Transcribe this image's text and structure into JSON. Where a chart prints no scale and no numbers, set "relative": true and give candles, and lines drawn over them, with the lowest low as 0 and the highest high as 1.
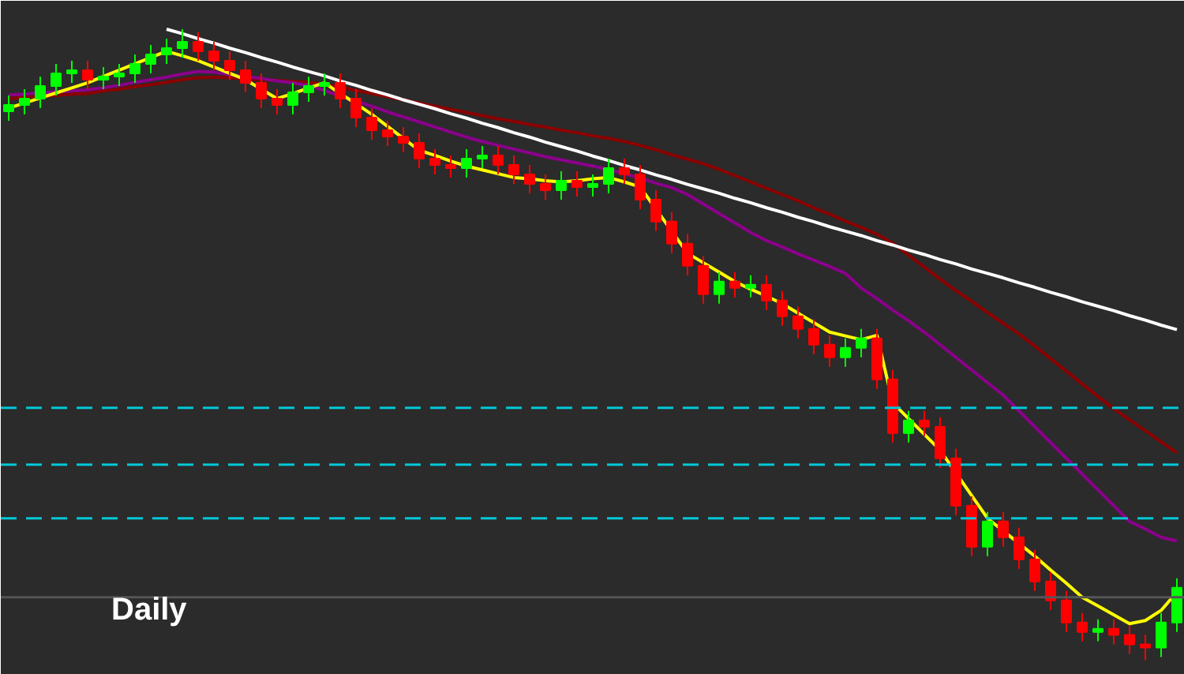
{
  "chart_data": {
    "type": "candlestick",
    "relative": true,
    "categories": [
      null,
      null,
      null,
      null,
      null,
      null,
      null,
      null,
      null,
      null,
      null,
      null,
      null,
      null,
      null,
      null,
      null,
      null,
      null,
      null,
      null,
      null,
      null,
      null,
      null,
      null,
      null,
      null,
      null,
      null,
      null,
      null,
      null,
      null,
      null,
      null,
      null,
      null,
      null,
      null,
      null,
      null,
      null,
      null,
      null,
      null,
      null,
      null,
      null,
      null,
      null,
      null,
      null,
      null,
      null,
      null,
      null,
      null,
      null,
      null,
      null,
      null,
      null,
      null,
      null,
      null,
      null,
      null,
      null,
      null,
      null,
      null,
      null,
      null,
      null
    ],
    "ohlc": [
      [
        0.87,
        0.895,
        0.855,
        0.88
      ],
      [
        0.88,
        0.905,
        0.865,
        0.89
      ],
      [
        0.89,
        0.925,
        0.875,
        0.91
      ],
      [
        0.91,
        0.945,
        0.895,
        0.93
      ],
      [
        0.93,
        0.95,
        0.915,
        0.935
      ],
      [
        0.935,
        0.95,
        0.905,
        0.92
      ],
      [
        0.92,
        0.94,
        0.905,
        0.925
      ],
      [
        0.925,
        0.945,
        0.91,
        0.93
      ],
      [
        0.93,
        0.96,
        0.915,
        0.945
      ],
      [
        0.945,
        0.975,
        0.93,
        0.96
      ],
      [
        0.96,
        0.985,
        0.945,
        0.97
      ],
      [
        0.97,
        1.0,
        0.955,
        0.98
      ],
      [
        0.98,
        0.995,
        0.95,
        0.965
      ],
      [
        0.965,
        0.98,
        0.935,
        0.95
      ],
      [
        0.95,
        0.965,
        0.92,
        0.935
      ],
      [
        0.935,
        0.95,
        0.9,
        0.915
      ],
      [
        0.915,
        0.93,
        0.875,
        0.89
      ],
      [
        0.89,
        0.905,
        0.865,
        0.88
      ],
      [
        0.88,
        0.915,
        0.865,
        0.9
      ],
      [
        0.9,
        0.925,
        0.885,
        0.91
      ],
      [
        0.91,
        0.93,
        0.895,
        0.915
      ],
      [
        0.915,
        0.93,
        0.875,
        0.89
      ],
      [
        0.89,
        0.905,
        0.845,
        0.86
      ],
      [
        0.86,
        0.875,
        0.825,
        0.84
      ],
      [
        0.84,
        0.855,
        0.815,
        0.83
      ],
      [
        0.83,
        0.845,
        0.805,
        0.82
      ],
      [
        0.82,
        0.835,
        0.78,
        0.795
      ],
      [
        0.795,
        0.81,
        0.77,
        0.785
      ],
      [
        0.785,
        0.8,
        0.765,
        0.78
      ],
      [
        0.78,
        0.81,
        0.765,
        0.795
      ],
      [
        0.795,
        0.815,
        0.78,
        0.8
      ],
      [
        0.8,
        0.815,
        0.77,
        0.785
      ],
      [
        0.785,
        0.8,
        0.755,
        0.77
      ],
      [
        0.77,
        0.785,
        0.74,
        0.755
      ],
      [
        0.755,
        0.77,
        0.73,
        0.745
      ],
      [
        0.745,
        0.775,
        0.73,
        0.76
      ],
      [
        0.76,
        0.775,
        0.735,
        0.75
      ],
      [
        0.75,
        0.77,
        0.735,
        0.755
      ],
      [
        0.755,
        0.795,
        0.74,
        0.78
      ],
      [
        0.78,
        0.795,
        0.755,
        0.77
      ],
      [
        0.77,
        0.785,
        0.715,
        0.73
      ],
      [
        0.73,
        0.745,
        0.68,
        0.695
      ],
      [
        0.695,
        0.71,
        0.645,
        0.66
      ],
      [
        0.66,
        0.675,
        0.61,
        0.625
      ],
      [
        0.625,
        0.64,
        0.565,
        0.58
      ],
      [
        0.58,
        0.615,
        0.565,
        0.6
      ],
      [
        0.6,
        0.615,
        0.575,
        0.59
      ],
      [
        0.59,
        0.61,
        0.575,
        0.595
      ],
      [
        0.595,
        0.61,
        0.555,
        0.57
      ],
      [
        0.57,
        0.585,
        0.53,
        0.545
      ],
      [
        0.545,
        0.56,
        0.51,
        0.525
      ],
      [
        0.525,
        0.54,
        0.485,
        0.5
      ],
      [
        0.5,
        0.515,
        0.465,
        0.48
      ],
      [
        0.48,
        0.51,
        0.465,
        0.495
      ],
      [
        0.495,
        0.525,
        0.48,
        0.51
      ],
      [
        0.51,
        0.525,
        0.43,
        0.445
      ],
      [
        0.445,
        0.46,
        0.345,
        0.36
      ],
      [
        0.36,
        0.395,
        0.345,
        0.38
      ],
      [
        0.38,
        0.395,
        0.355,
        0.37
      ],
      [
        0.37,
        0.385,
        0.305,
        0.32
      ],
      [
        0.32,
        0.335,
        0.23,
        0.245
      ],
      [
        0.245,
        0.26,
        0.165,
        0.18
      ],
      [
        0.18,
        0.235,
        0.165,
        0.22
      ],
      [
        0.22,
        0.235,
        0.18,
        0.195
      ],
      [
        0.195,
        0.21,
        0.145,
        0.16
      ],
      [
        0.16,
        0.175,
        0.11,
        0.125
      ],
      [
        0.125,
        0.14,
        0.08,
        0.095
      ],
      [
        0.095,
        0.11,
        0.045,
        0.06
      ],
      [
        0.06,
        0.075,
        0.03,
        0.045
      ],
      [
        0.045,
        0.065,
        0.03,
        0.05
      ],
      [
        0.05,
        0.065,
        0.025,
        0.04
      ],
      [
        0.04,
        0.055,
        0.01,
        0.025
      ],
      [
        0.025,
        0.04,
        0.0,
        0.02
      ],
      [
        0.02,
        0.075,
        0.005,
        0.06
      ],
      [
        0.06,
        0.13,
        0.045,
        0.115
      ]
    ],
    "colors": [
      "#00ff00",
      "#00ff00",
      "#00ff00",
      "#00ff00",
      "#00ff00",
      "#ff0000",
      "#00ff00",
      "#00ff00",
      "#00ff00",
      "#00ff00",
      "#00ff00",
      "#00ff00",
      "#ff0000",
      "#ff0000",
      "#ff0000",
      "#ff0000",
      "#ff0000",
      "#ff0000",
      "#00ff00",
      "#00ff00",
      "#00ff00",
      "#ff0000",
      "#ff0000",
      "#ff0000",
      "#ff0000",
      "#ff0000",
      "#ff0000",
      "#ff0000",
      "#ff0000",
      "#00ff00",
      "#00ff00",
      "#ff0000",
      "#ff0000",
      "#ff0000",
      "#ff0000",
      "#00ff00",
      "#ff0000",
      "#00ff00",
      "#00ff00",
      "#ff0000",
      "#ff0000",
      "#ff0000",
      "#ff0000",
      "#ff0000",
      "#ff0000",
      "#00ff00",
      "#ff0000",
      "#00ff00",
      "#ff0000",
      "#ff0000",
      "#ff0000",
      "#ff0000",
      "#ff0000",
      "#00ff00",
      "#00ff00",
      "#ff0000",
      "#ff0000",
      "#00ff00",
      "#ff0000",
      "#ff0000",
      "#ff0000",
      "#ff0000",
      "#00ff00",
      "#ff0000",
      "#ff0000",
      "#ff0000",
      "#ff0000",
      "#ff0000",
      "#ff0000",
      "#00ff00",
      "#ff0000",
      "#ff0000",
      "#ff0000",
      "#00ff00",
      "#00ff00"
    ],
    "series": [
      {
        "type": "line",
        "color": "#8b0000",
        "values": [
          0.89,
          0.892,
          0.893,
          0.895,
          0.897,
          0.898,
          0.902,
          0.905,
          0.909,
          0.912,
          0.916,
          0.92,
          0.923,
          0.924,
          0.923,
          0.921,
          0.92,
          0.919,
          0.917,
          0.916,
          0.913,
          0.908,
          0.903,
          0.898,
          0.893,
          0.888,
          0.883,
          0.878,
          0.873,
          0.868,
          0.863,
          0.858,
          0.854,
          0.849,
          0.845,
          0.84,
          0.836,
          0.831,
          0.827,
          0.822,
          0.816,
          0.809,
          0.801,
          0.794,
          0.787,
          0.778,
          0.768,
          0.758,
          0.748,
          0.738,
          0.728,
          0.717,
          0.707,
          0.696,
          0.686,
          0.675,
          0.661,
          0.642,
          0.623,
          0.604,
          0.586,
          0.569,
          0.551,
          0.534,
          0.517,
          0.498,
          0.478,
          0.458,
          0.438,
          0.418,
          0.399,
          0.381,
          0.364,
          0.346,
          0.329
        ]
      },
      {
        "type": "line",
        "color": "#8b008b",
        "values": [
          0.896,
          0.897,
          0.899,
          0.901,
          0.902,
          0.904,
          0.907,
          0.911,
          0.916,
          0.92,
          0.924,
          0.929,
          0.933,
          0.932,
          0.928,
          0.925,
          0.922,
          0.918,
          0.915,
          0.911,
          0.903,
          0.894,
          0.886,
          0.878,
          0.869,
          0.861,
          0.853,
          0.845,
          0.837,
          0.829,
          0.822,
          0.816,
          0.81,
          0.804,
          0.798,
          0.793,
          0.788,
          0.783,
          0.778,
          0.771,
          0.764,
          0.756,
          0.749,
          0.738,
          0.723,
          0.708,
          0.693,
          0.678,
          0.665,
          0.655,
          0.644,
          0.634,
          0.624,
          0.613,
          0.59,
          0.573,
          0.555,
          0.538,
          0.52,
          0.5,
          0.48,
          0.46,
          0.44,
          0.42,
          0.395,
          0.37,
          0.345,
          0.32,
          0.295,
          0.27,
          0.245,
          0.22,
          0.208,
          0.195,
          0.189
        ]
      },
      {
        "type": "line",
        "color": "#ffff00",
        "values": [
          0.875,
          0.883,
          0.891,
          0.899,
          0.907,
          0.915,
          0.925,
          0.935,
          0.945,
          0.955,
          0.965,
          0.958,
          0.95,
          0.94,
          0.93,
          0.92,
          0.905,
          0.89,
          0.898,
          0.907,
          0.915,
          0.898,
          0.882,
          0.865,
          0.846,
          0.827,
          0.808,
          0.8,
          0.791,
          0.783,
          0.777,
          0.771,
          0.765,
          0.763,
          0.76,
          0.758,
          0.76,
          0.763,
          0.765,
          0.758,
          0.75,
          0.715,
          0.68,
          0.645,
          0.63,
          0.615,
          0.6,
          0.588,
          0.577,
          0.565,
          0.55,
          0.535,
          0.52,
          0.514,
          0.508,
          0.515,
          0.408,
          0.383,
          0.358,
          0.333,
          0.297,
          0.261,
          0.225,
          0.205,
          0.185,
          0.165,
          0.143,
          0.122,
          0.1,
          0.086,
          0.072,
          0.058,
          0.063,
          0.079,
          0.108
        ]
      },
      {
        "type": "line",
        "color": "#ffffff",
        "values": [
          null,
          null,
          null,
          null,
          null,
          null,
          null,
          null,
          null,
          null,
          1.0,
          0.993,
          0.985,
          0.978,
          0.97,
          0.963,
          0.955,
          0.948,
          0.94,
          0.933,
          0.926,
          0.918,
          0.911,
          0.903,
          0.896,
          0.888,
          0.881,
          0.874,
          0.866,
          0.859,
          0.851,
          0.844,
          0.836,
          0.829,
          0.821,
          0.814,
          0.807,
          0.799,
          0.792,
          0.784,
          0.777,
          0.769,
          0.762,
          0.754,
          0.747,
          0.74,
          0.732,
          0.725,
          0.717,
          0.71,
          0.702,
          0.695,
          0.687,
          0.68,
          0.673,
          0.665,
          0.658,
          0.65,
          0.643,
          0.635,
          0.628,
          0.62,
          0.613,
          0.606,
          0.598,
          0.591,
          0.583,
          0.576,
          0.568,
          0.561,
          0.554,
          0.546,
          0.539,
          0.531,
          0.524
        ]
      }
    ],
    "ref_lines": [
      {
        "axis": "y",
        "value": 0.4,
        "color": "#00c8d8",
        "line_style": "dashed"
      },
      {
        "axis": "y",
        "value": 0.31,
        "color": "#00c8d8",
        "line_style": "dashed"
      },
      {
        "axis": "y",
        "value": 0.225,
        "color": "#00c8d8",
        "line_style": "dashed"
      },
      {
        "axis": "y",
        "value": 0.1,
        "color": "#555555",
        "line_style": "solid"
      }
    ],
    "annotations": [
      "Daily"
    ],
    "tick_labels": false,
    "grid": false
  }
}
